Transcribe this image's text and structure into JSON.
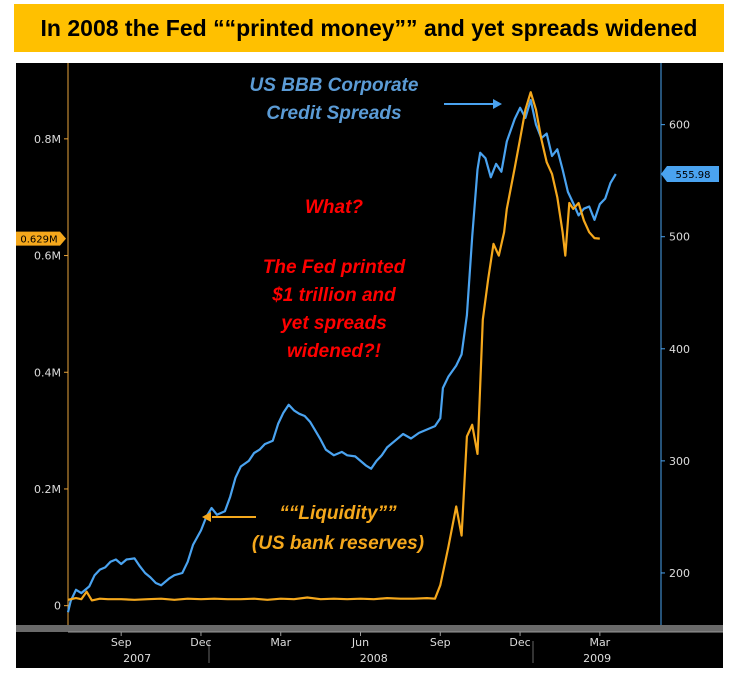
{
  "title": "In 2008 the Fed ““printed money”” and yet spreads widened",
  "chart_data": {
    "type": "line",
    "x_ticks": [
      {
        "label": "Sep",
        "t": 2
      },
      {
        "label": "Dec",
        "t": 5
      },
      {
        "label": "Mar",
        "t": 8
      },
      {
        "label": "Jun",
        "t": 11
      },
      {
        "label": "Sep",
        "t": 14
      },
      {
        "label": "Dec",
        "t": 17
      },
      {
        "label": "Mar",
        "t": 20
      }
    ],
    "x_years": [
      {
        "label": "2007",
        "t": 2.6
      },
      {
        "label": "2008",
        "t": 11.5
      },
      {
        "label": "2009",
        "t": 19.9
      }
    ],
    "x_range": [
      0,
      22.3
    ],
    "left_axis": {
      "ticks": [
        "0",
        "0.2M",
        "0.4M",
        "0.6M",
        "0.8M"
      ],
      "tick_values": [
        0,
        0.2,
        0.4,
        0.6,
        0.8
      ],
      "range": [
        -0.04,
        0.93
      ],
      "last_value_label": "0.629M",
      "last_value": 0.629
    },
    "right_axis": {
      "ticks": [
        "200",
        "300",
        "400",
        "500",
        "600"
      ],
      "tick_values": [
        200,
        300,
        400,
        500,
        600
      ],
      "range": [
        150,
        655
      ],
      "last_value_label": "555.98",
      "last_value": 555.98
    },
    "series": [
      {
        "name": "US BBB Corporate Credit Spreads",
        "axis": "right",
        "color": "#4aa3f0",
        "points": [
          [
            0,
            165
          ],
          [
            0.1,
            175
          ],
          [
            0.3,
            185
          ],
          [
            0.5,
            182
          ],
          [
            0.8,
            188
          ],
          [
            1.0,
            198
          ],
          [
            1.2,
            203
          ],
          [
            1.4,
            205
          ],
          [
            1.6,
            210
          ],
          [
            1.8,
            212
          ],
          [
            2.0,
            208
          ],
          [
            2.2,
            212
          ],
          [
            2.5,
            213
          ],
          [
            2.7,
            206
          ],
          [
            2.9,
            200
          ],
          [
            3.1,
            196
          ],
          [
            3.3,
            191
          ],
          [
            3.5,
            189
          ],
          [
            3.8,
            195
          ],
          [
            4.0,
            198
          ],
          [
            4.3,
            200
          ],
          [
            4.5,
            210
          ],
          [
            4.7,
            225
          ],
          [
            5.0,
            238
          ],
          [
            5.2,
            250
          ],
          [
            5.4,
            258
          ],
          [
            5.6,
            252
          ],
          [
            5.9,
            255
          ],
          [
            6.1,
            268
          ],
          [
            6.3,
            285
          ],
          [
            6.5,
            295
          ],
          [
            6.8,
            300
          ],
          [
            7.0,
            307
          ],
          [
            7.2,
            310
          ],
          [
            7.4,
            315
          ],
          [
            7.7,
            318
          ],
          [
            7.9,
            333
          ],
          [
            8.1,
            343
          ],
          [
            8.3,
            350
          ],
          [
            8.5,
            345
          ],
          [
            8.7,
            342
          ],
          [
            8.9,
            340
          ],
          [
            9.1,
            335
          ],
          [
            9.3,
            327
          ],
          [
            9.5,
            319
          ],
          [
            9.7,
            310
          ],
          [
            10.0,
            305
          ],
          [
            10.3,
            308
          ],
          [
            10.5,
            305
          ],
          [
            10.8,
            304
          ],
          [
            11.0,
            300
          ],
          [
            11.2,
            296
          ],
          [
            11.4,
            293
          ],
          [
            11.6,
            300
          ],
          [
            11.8,
            305
          ],
          [
            12.0,
            312
          ],
          [
            12.3,
            318
          ],
          [
            12.6,
            324
          ],
          [
            12.9,
            320
          ],
          [
            13.2,
            325
          ],
          [
            13.5,
            328
          ],
          [
            13.8,
            331
          ],
          [
            14.0,
            338
          ],
          [
            14.1,
            365
          ],
          [
            14.3,
            375
          ],
          [
            14.6,
            385
          ],
          [
            14.8,
            395
          ],
          [
            15.0,
            430
          ],
          [
            15.2,
            500
          ],
          [
            15.4,
            560
          ],
          [
            15.5,
            575
          ],
          [
            15.7,
            570
          ],
          [
            15.9,
            553
          ],
          [
            16.1,
            565
          ],
          [
            16.3,
            558
          ],
          [
            16.5,
            585
          ],
          [
            16.8,
            605
          ],
          [
            17.0,
            615
          ],
          [
            17.2,
            606
          ],
          [
            17.4,
            622
          ],
          [
            17.6,
            600
          ],
          [
            17.8,
            588
          ],
          [
            18.0,
            592
          ],
          [
            18.2,
            572
          ],
          [
            18.4,
            578
          ],
          [
            18.6,
            560
          ],
          [
            18.8,
            540
          ],
          [
            19.0,
            530
          ],
          [
            19.2,
            519
          ],
          [
            19.4,
            525
          ],
          [
            19.6,
            527
          ],
          [
            19.8,
            515
          ],
          [
            20.0,
            529
          ],
          [
            20.2,
            534
          ],
          [
            20.4,
            548
          ],
          [
            20.6,
            556
          ]
        ]
      },
      {
        "name": "Liquidity (US bank reserves)",
        "axis": "left",
        "color": "#f5a81c",
        "points": [
          [
            0,
            0.01
          ],
          [
            0.3,
            0.013
          ],
          [
            0.5,
            0.011
          ],
          [
            0.7,
            0.024
          ],
          [
            0.9,
            0.009
          ],
          [
            1.2,
            0.012
          ],
          [
            1.5,
            0.011
          ],
          [
            2,
            0.011
          ],
          [
            2.5,
            0.01
          ],
          [
            3,
            0.011
          ],
          [
            3.5,
            0.012
          ],
          [
            4,
            0.01
          ],
          [
            4.5,
            0.012
          ],
          [
            5,
            0.011
          ],
          [
            5.5,
            0.012
          ],
          [
            6,
            0.011
          ],
          [
            6.5,
            0.011
          ],
          [
            7,
            0.012
          ],
          [
            7.5,
            0.01
          ],
          [
            8,
            0.012
          ],
          [
            8.5,
            0.011
          ],
          [
            9,
            0.014
          ],
          [
            9.5,
            0.011
          ],
          [
            10,
            0.012
          ],
          [
            10.5,
            0.011
          ],
          [
            11,
            0.012
          ],
          [
            11.5,
            0.011
          ],
          [
            12,
            0.013
          ],
          [
            12.5,
            0.012
          ],
          [
            13,
            0.012
          ],
          [
            13.5,
            0.013
          ],
          [
            13.8,
            0.012
          ],
          [
            14.0,
            0.035
          ],
          [
            14.3,
            0.1
          ],
          [
            14.6,
            0.17
          ],
          [
            14.8,
            0.12
          ],
          [
            15.0,
            0.29
          ],
          [
            15.2,
            0.31
          ],
          [
            15.4,
            0.26
          ],
          [
            15.6,
            0.49
          ],
          [
            15.8,
            0.56
          ],
          [
            16.0,
            0.62
          ],
          [
            16.2,
            0.6
          ],
          [
            16.4,
            0.64
          ],
          [
            16.5,
            0.68
          ],
          [
            16.8,
            0.75
          ],
          [
            17.0,
            0.8
          ],
          [
            17.2,
            0.85
          ],
          [
            17.4,
            0.88
          ],
          [
            17.6,
            0.85
          ],
          [
            17.8,
            0.8
          ],
          [
            18.0,
            0.76
          ],
          [
            18.2,
            0.74
          ],
          [
            18.4,
            0.7
          ],
          [
            18.6,
            0.64
          ],
          [
            18.7,
            0.6
          ],
          [
            18.85,
            0.69
          ],
          [
            19.0,
            0.68
          ],
          [
            19.2,
            0.69
          ],
          [
            19.4,
            0.66
          ],
          [
            19.6,
            0.64
          ],
          [
            19.8,
            0.63
          ],
          [
            20.0,
            0.629
          ]
        ]
      }
    ],
    "annotations": [
      "US BBB Corporate",
      "Credit Spreads",
      "What?",
      "The Fed printed",
      "$1 trillion and",
      "yet spreads",
      "widened?!",
      "““Liquidity””",
      "(US bank reserves)"
    ]
  },
  "colors": {
    "blue_line": "#4aa3f0",
    "orange_line": "#f5a81c",
    "title_bg": "#ffc000",
    "annotation_red": "#ff0000",
    "annotation_blue": "#5b9bd5"
  }
}
